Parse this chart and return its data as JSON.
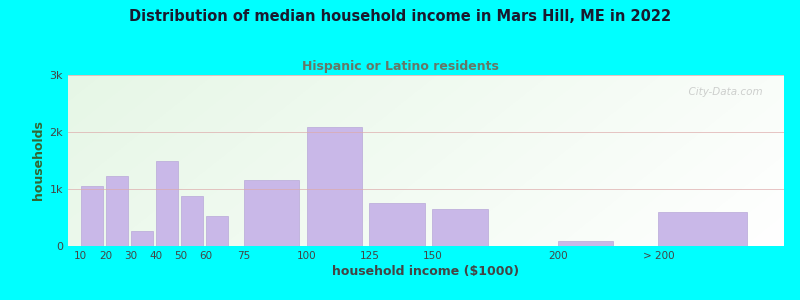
{
  "title": "Distribution of median household income in Mars Hill, ME in 2022",
  "subtitle": "Hispanic or Latino residents",
  "xlabel": "household income ($1000)",
  "ylabel": "households",
  "background_outer": "#00FFFF",
  "bar_color": "#c9b8e8",
  "bar_edge_color": "#b8a8d8",
  "title_color": "#1a1a2e",
  "subtitle_color": "#667766",
  "ylabel_color": "#336633",
  "xlabel_color": "#444444",
  "tick_labels": [
    "10",
    "20",
    "30",
    "40",
    "50",
    "60",
    "75",
    "100",
    "125",
    "150",
    "200",
    "> 200"
  ],
  "bar_heights": [
    1050,
    1220,
    270,
    1490,
    870,
    530,
    1160,
    2080,
    760,
    650,
    80,
    600
  ],
  "bar_positions": [
    10,
    20,
    30,
    40,
    50,
    60,
    75,
    100,
    125,
    150,
    200,
    240
  ],
  "bar_widths": [
    10,
    10,
    10,
    10,
    10,
    10,
    25,
    25,
    25,
    25,
    25,
    40
  ],
  "ylim": [
    0,
    3000
  ],
  "yticks": [
    0,
    1000,
    2000,
    3000
  ],
  "ytick_labels": [
    "0",
    "1k",
    "2k",
    "3k"
  ],
  "watermark": "  City-Data.com"
}
